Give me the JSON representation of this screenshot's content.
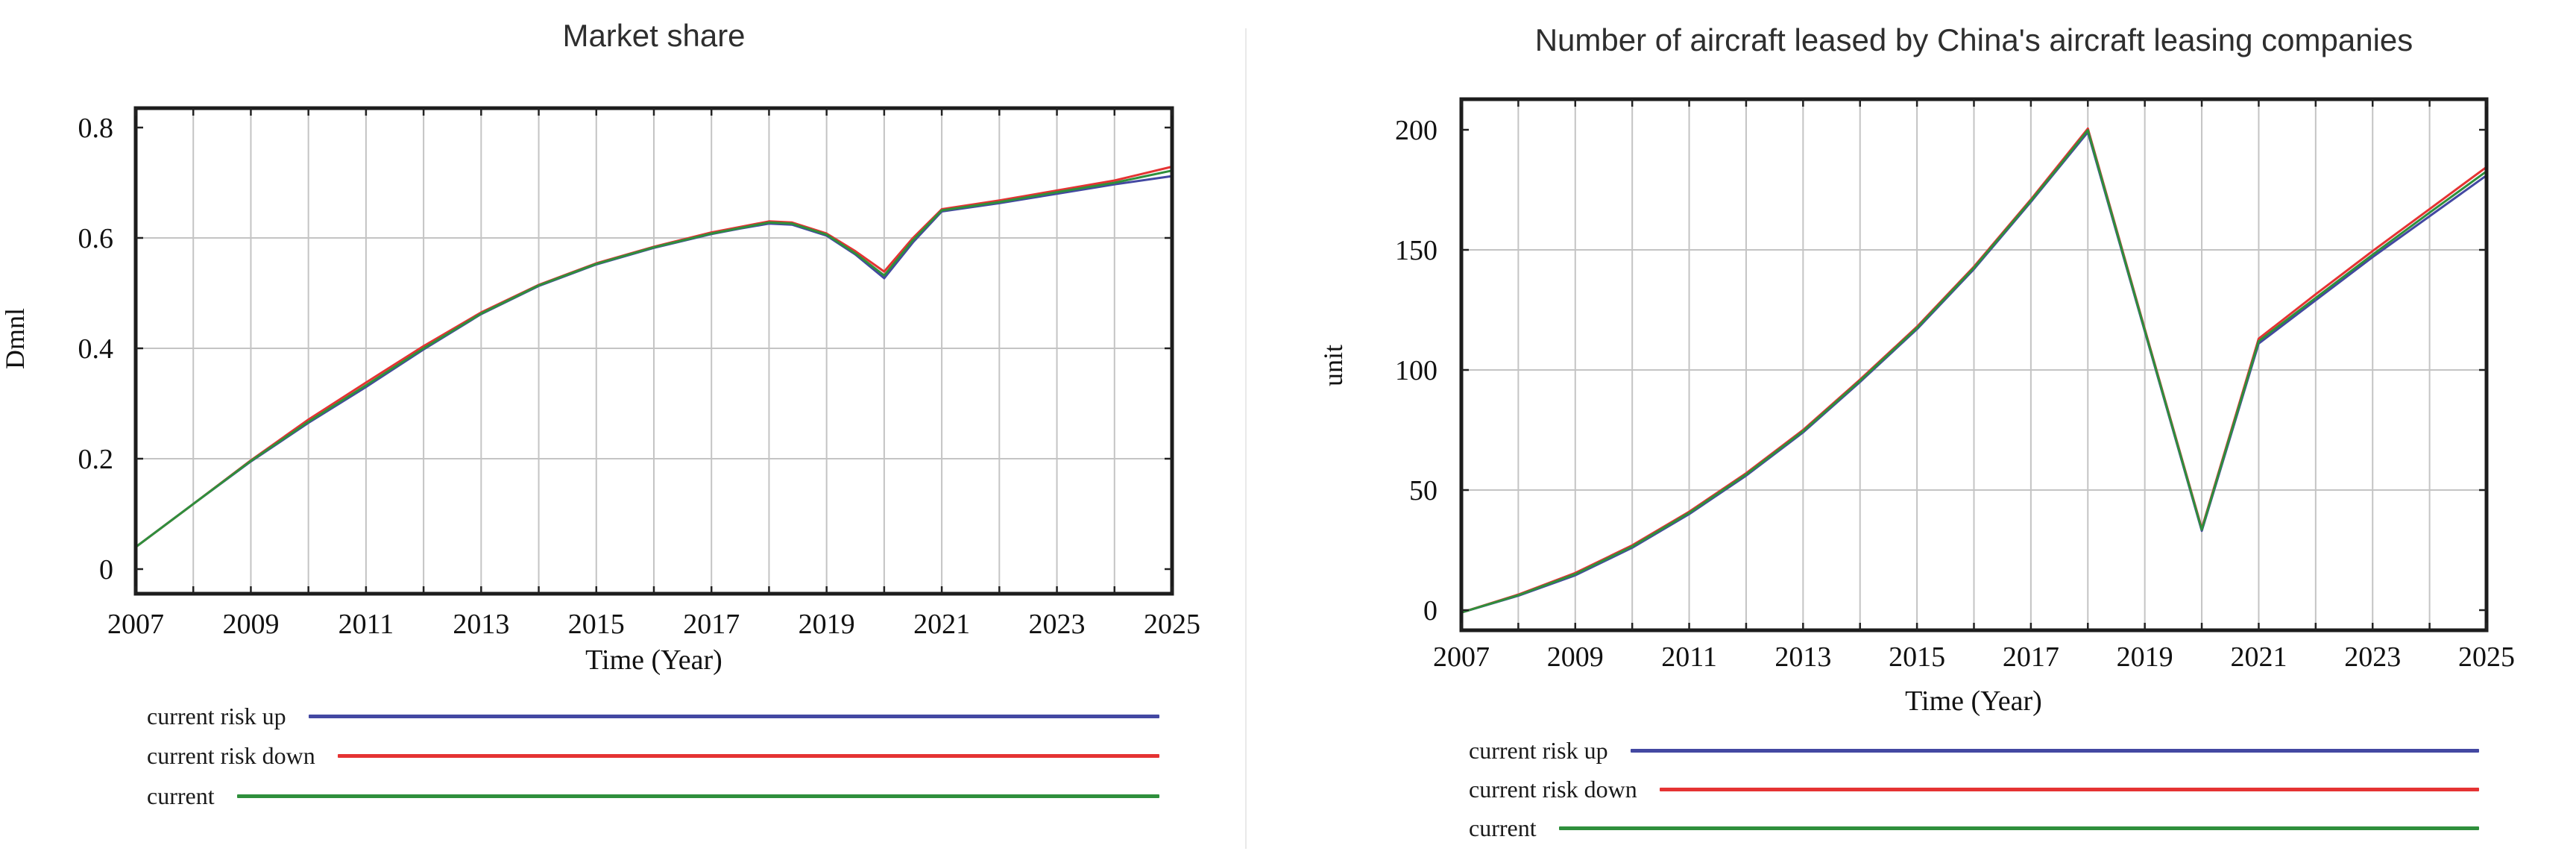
{
  "page": {
    "background": "#ffffff",
    "grid_color": "#c4c4c4",
    "border_color": "#1c1c1c",
    "divider_color": "#e9e9e9"
  },
  "chart_data": [
    {
      "type": "line",
      "title": "Market share",
      "ylabel": "Dmnl",
      "xlabel": "Time (Year)",
      "xlim": [
        2007,
        2025
      ],
      "ylim_draw": [
        -0.0446,
        0.835
      ],
      "grid": true,
      "grid_x_step": 1,
      "grid_y_values": [
        0.2,
        0.4,
        0.6
      ],
      "yticks": [
        {
          "v": 0.8,
          "label": "0.8"
        },
        {
          "v": 0.6,
          "label": "0.6"
        },
        {
          "v": 0.4,
          "label": "0.4"
        },
        {
          "v": 0.2,
          "label": "0.2"
        },
        {
          "v": 0,
          "label": "0"
        }
      ],
      "xticks": [
        {
          "v": 2007,
          "label": "2007"
        },
        {
          "v": 2009,
          "label": "2009"
        },
        {
          "v": 2011,
          "label": "2011"
        },
        {
          "v": 2013,
          "label": "2013"
        },
        {
          "v": 2015,
          "label": "2015"
        },
        {
          "v": 2017,
          "label": "2017"
        },
        {
          "v": 2019,
          "label": "2019"
        },
        {
          "v": 2021,
          "label": "2021"
        },
        {
          "v": 2023,
          "label": "2023"
        },
        {
          "v": 2025,
          "label": "2025"
        }
      ],
      "legend_position": "bottom-left",
      "series": [
        {
          "name": "current risk up",
          "color": "#4348a2",
          "points": [
            [
              2007,
              0.04
            ],
            [
              2008,
              0.118
            ],
            [
              2009,
              0.195
            ],
            [
              2010,
              0.265
            ],
            [
              2011,
              0.33
            ],
            [
              2012,
              0.398
            ],
            [
              2013,
              0.462
            ],
            [
              2014,
              0.513
            ],
            [
              2015,
              0.552
            ],
            [
              2016,
              0.582
            ],
            [
              2017,
              0.607
            ],
            [
              2017.5,
              0.617
            ],
            [
              2018,
              0.626
            ],
            [
              2018.4,
              0.624
            ],
            [
              2019,
              0.604
            ],
            [
              2019.5,
              0.57
            ],
            [
              2020,
              0.527
            ],
            [
              2020.5,
              0.592
            ],
            [
              2021,
              0.648
            ],
            [
              2022,
              0.663
            ],
            [
              2023,
              0.68
            ],
            [
              2024,
              0.697
            ],
            [
              2025,
              0.712
            ]
          ]
        },
        {
          "name": "current risk down",
          "color": "#e53333",
          "points": [
            [
              2007,
              0.04
            ],
            [
              2008,
              0.118
            ],
            [
              2009,
              0.197
            ],
            [
              2010,
              0.271
            ],
            [
              2011,
              0.338
            ],
            [
              2012,
              0.404
            ],
            [
              2013,
              0.465
            ],
            [
              2014,
              0.515
            ],
            [
              2015,
              0.554
            ],
            [
              2016,
              0.584
            ],
            [
              2017,
              0.61
            ],
            [
              2017.5,
              0.62
            ],
            [
              2018,
              0.63
            ],
            [
              2018.4,
              0.628
            ],
            [
              2019,
              0.608
            ],
            [
              2019.5,
              0.576
            ],
            [
              2020,
              0.539
            ],
            [
              2020.5,
              0.6
            ],
            [
              2021,
              0.652
            ],
            [
              2022,
              0.668
            ],
            [
              2023,
              0.686
            ],
            [
              2024,
              0.704
            ],
            [
              2025,
              0.729
            ]
          ]
        },
        {
          "name": "current",
          "color": "#2f8f3c",
          "points": [
            [
              2007,
              0.04
            ],
            [
              2008,
              0.118
            ],
            [
              2009,
              0.196
            ],
            [
              2010,
              0.267
            ],
            [
              2011,
              0.333
            ],
            [
              2012,
              0.4
            ],
            [
              2013,
              0.463
            ],
            [
              2014,
              0.514
            ],
            [
              2015,
              0.553
            ],
            [
              2016,
              0.583
            ],
            [
              2017,
              0.608
            ],
            [
              2017.5,
              0.618
            ],
            [
              2018,
              0.628
            ],
            [
              2018.4,
              0.626
            ],
            [
              2019,
              0.606
            ],
            [
              2019.5,
              0.572
            ],
            [
              2020,
              0.532
            ],
            [
              2020.5,
              0.596
            ],
            [
              2021,
              0.65
            ],
            [
              2022,
              0.665
            ],
            [
              2023,
              0.683
            ],
            [
              2024,
              0.7
            ],
            [
              2025,
              0.722
            ]
          ]
        }
      ]
    },
    {
      "type": "line",
      "title": "Number of aircraft leased by China's aircraft leasing companies",
      "ylabel": "unit",
      "xlabel": "Time (Year)",
      "xlim": [
        2007,
        2025
      ],
      "ylim_draw": [
        -8.4,
        212.7
      ],
      "grid": true,
      "grid_x_step": 1,
      "grid_y_values": [
        50,
        100,
        150
      ],
      "yticks": [
        {
          "v": 200,
          "label": "200"
        },
        {
          "v": 150,
          "label": "150"
        },
        {
          "v": 100,
          "label": "100"
        },
        {
          "v": 50,
          "label": "50"
        },
        {
          "v": 0,
          "label": "0"
        }
      ],
      "xticks": [
        {
          "v": 2007,
          "label": "2007"
        },
        {
          "v": 2009,
          "label": "2009"
        },
        {
          "v": 2011,
          "label": "2011"
        },
        {
          "v": 2013,
          "label": "2013"
        },
        {
          "v": 2015,
          "label": "2015"
        },
        {
          "v": 2017,
          "label": "2017"
        },
        {
          "v": 2019,
          "label": "2019"
        },
        {
          "v": 2021,
          "label": "2021"
        },
        {
          "v": 2023,
          "label": "2023"
        },
        {
          "v": 2025,
          "label": "2025"
        }
      ],
      "legend_position": "bottom-left",
      "series": [
        {
          "name": "current risk up",
          "color": "#4348a2",
          "points": [
            [
              2007,
              -1
            ],
            [
              2008,
              6
            ],
            [
              2009,
              14.5
            ],
            [
              2010,
              26
            ],
            [
              2011,
              40
            ],
            [
              2012,
              56
            ],
            [
              2013,
              74
            ],
            [
              2014,
              95
            ],
            [
              2015,
              117
            ],
            [
              2016,
              142
            ],
            [
              2017,
              170
            ],
            [
              2017.5,
              184.5
            ],
            [
              2018,
              199
            ],
            [
              2019,
              116
            ],
            [
              2020,
              33
            ],
            [
              2021,
              111
            ],
            [
              2022,
              129
            ],
            [
              2023,
              147
            ],
            [
              2024,
              164
            ],
            [
              2025,
              181
            ]
          ]
        },
        {
          "name": "current risk down",
          "color": "#e53333",
          "points": [
            [
              2007,
              -1
            ],
            [
              2008,
              6.5
            ],
            [
              2009,
              15.5
            ],
            [
              2010,
              27
            ],
            [
              2011,
              41
            ],
            [
              2012,
              57
            ],
            [
              2013,
              75
            ],
            [
              2014,
              96
            ],
            [
              2015,
              118
            ],
            [
              2016,
              143
            ],
            [
              2017,
              171
            ],
            [
              2017.5,
              185.7
            ],
            [
              2018,
              200.5
            ],
            [
              2019,
              117
            ],
            [
              2020,
              34
            ],
            [
              2021,
              113
            ],
            [
              2022,
              131.5
            ],
            [
              2023,
              149.5
            ],
            [
              2024,
              167
            ],
            [
              2025,
              184.5
            ]
          ]
        },
        {
          "name": "current",
          "color": "#2f8f3c",
          "points": [
            [
              2007,
              -1
            ],
            [
              2008,
              6.2
            ],
            [
              2009,
              15
            ],
            [
              2010,
              26.5
            ],
            [
              2011,
              40.5
            ],
            [
              2012,
              56.5
            ],
            [
              2013,
              74.5
            ],
            [
              2014,
              95.5
            ],
            [
              2015,
              117.5
            ],
            [
              2016,
              142.5
            ],
            [
              2017,
              170.5
            ],
            [
              2017.5,
              185
            ],
            [
              2018,
              199.8
            ],
            [
              2019,
              116.5
            ],
            [
              2020,
              33.5
            ],
            [
              2021,
              112
            ],
            [
              2022,
              130
            ],
            [
              2023,
              148
            ],
            [
              2024,
              165.5
            ],
            [
              2025,
              182.7
            ]
          ]
        }
      ]
    }
  ]
}
